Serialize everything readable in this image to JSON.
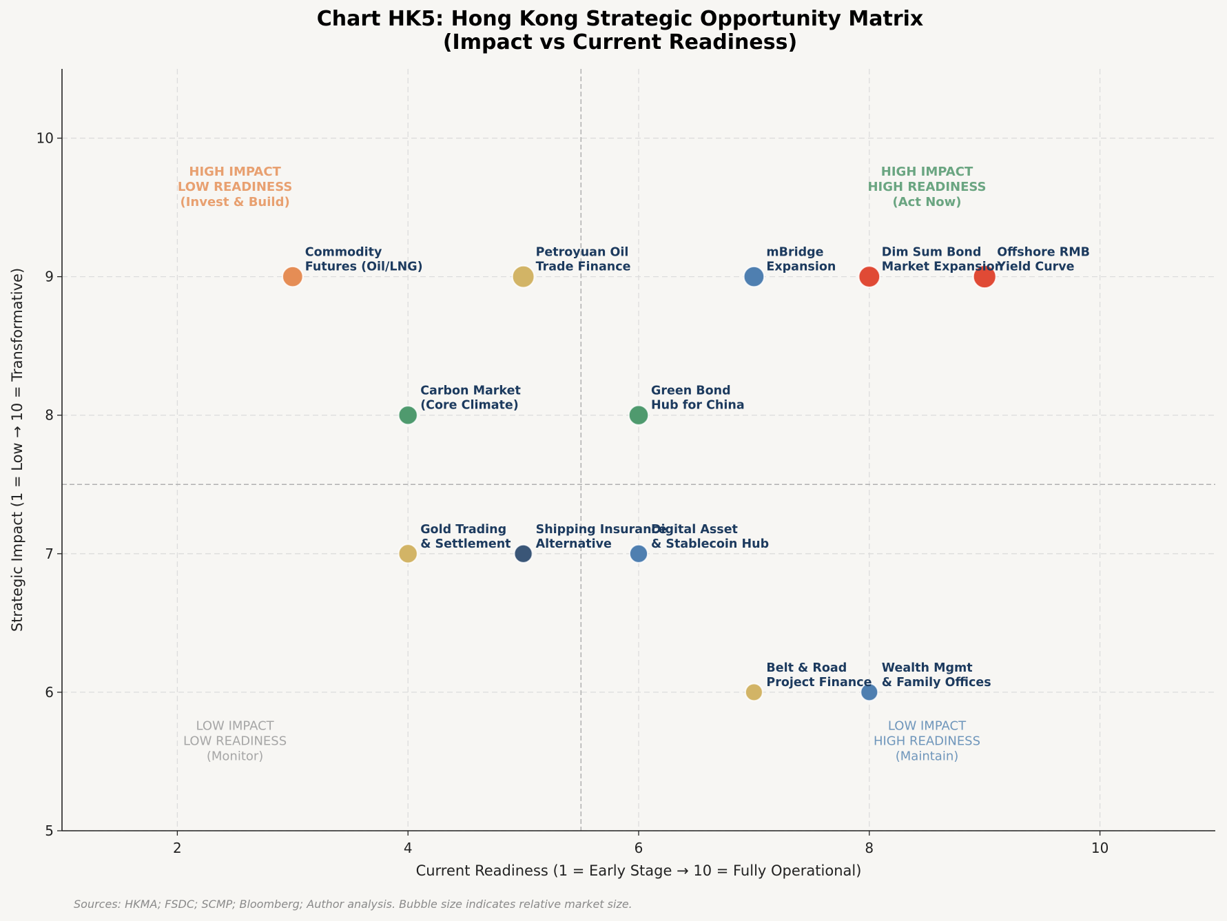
{
  "chart_data": {
    "type": "scatter",
    "title": "Chart HK5: Hong Kong Strategic Opportunity Matrix",
    "subtitle": "(Impact vs Current Readiness)",
    "xlabel": "Current Readiness (1 = Early Stage → 10 = Fully Operational)",
    "ylabel": "Strategic Impact (1 = Low → 10 = Transformative)",
    "xlim": [
      1,
      11
    ],
    "ylim": [
      5,
      10.5
    ],
    "xticks": [
      2,
      4,
      6,
      8,
      10
    ],
    "yticks": [
      5,
      6,
      7,
      8,
      9,
      10
    ],
    "grid": true,
    "quadrant_divider": {
      "x": 5.5,
      "y": 7.5
    },
    "points": [
      {
        "label_lines": [
          "Commodity",
          "Futures (Oil/LNG)"
        ],
        "x": 3,
        "y": 9,
        "size": 13,
        "color": "#e58d55"
      },
      {
        "label_lines": [
          "Petroyuan Oil",
          "Trade Finance"
        ],
        "x": 5,
        "y": 9,
        "size": 14,
        "color": "#d2b466"
      },
      {
        "label_lines": [
          "mBridge",
          "Expansion"
        ],
        "x": 7,
        "y": 9,
        "size": 13,
        "color": "#4f7fb0"
      },
      {
        "label_lines": [
          "Dim Sum Bond",
          "Market Expansion"
        ],
        "x": 8,
        "y": 9,
        "size": 13.5,
        "color": "#e04a35"
      },
      {
        "label_lines": [
          "Offshore RMB",
          "Yield Curve"
        ],
        "x": 9,
        "y": 9,
        "size": 14.5,
        "color": "#e04a35"
      },
      {
        "label_lines": [
          "Carbon Market",
          "(Core Climate)"
        ],
        "x": 4,
        "y": 8,
        "size": 12,
        "color": "#4f9a6e"
      },
      {
        "label_lines": [
          "Green Bond",
          "Hub for China"
        ],
        "x": 6,
        "y": 8,
        "size": 12.5,
        "color": "#4f9a6e"
      },
      {
        "label_lines": [
          "Gold Trading",
          "& Settlement"
        ],
        "x": 4,
        "y": 7,
        "size": 12,
        "color": "#d2b466"
      },
      {
        "label_lines": [
          "Shipping Insurance",
          "Alternative"
        ],
        "x": 5,
        "y": 7,
        "size": 11.5,
        "color": "#3a5677"
      },
      {
        "label_lines": [
          "Digital Asset",
          "& Stablecoin Hub"
        ],
        "x": 6,
        "y": 7,
        "size": 11.5,
        "color": "#4f7fb0"
      },
      {
        "label_lines": [
          "Belt & Road",
          "Project Finance"
        ],
        "x": 7,
        "y": 6,
        "size": 11,
        "color": "#d2b466"
      },
      {
        "label_lines": [
          "Wealth Mgmt",
          "& Family Offices"
        ],
        "x": 8,
        "y": 6,
        "size": 11,
        "color": "#4f7fb0"
      }
    ],
    "annotations": [
      {
        "lines": [
          "HIGH IMPACT",
          "LOW READINESS",
          "(Invest & Build)"
        ],
        "x": 2.5,
        "y": 9.65,
        "color": "#e8a070",
        "bold": true
      },
      {
        "lines": [
          "HIGH IMPACT",
          "HIGH READINESS",
          "(Act Now)"
        ],
        "x": 8.5,
        "y": 9.65,
        "color": "#6aa581",
        "bold": true
      },
      {
        "lines": [
          "LOW IMPACT",
          "LOW READINESS",
          "(Monitor)"
        ],
        "x": 2.5,
        "y": 5.65,
        "color": "#a6a6a6",
        "bold": false
      },
      {
        "lines": [
          "LOW IMPACT",
          "HIGH READINESS",
          "(Maintain)"
        ],
        "x": 8.5,
        "y": 5.65,
        "color": "#6f96bb",
        "bold": false
      }
    ],
    "source_note": "Sources: HKMA; FSDC; SCMP; Bloomberg; Author analysis. Bubble size indicates relative market size."
  }
}
